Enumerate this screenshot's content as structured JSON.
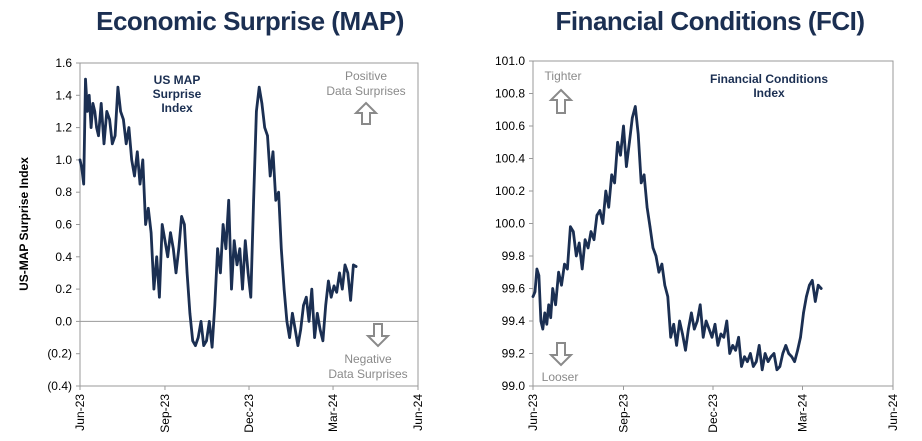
{
  "titles": {
    "left": "Economic Surprise (MAP)",
    "right": "Financial Conditions (FCI)"
  },
  "annotations": {
    "left_series_label": [
      "US MAP",
      "Surprise",
      "Index"
    ],
    "left_positive": [
      "Positive",
      "Data Surprises"
    ],
    "left_negative": [
      "Negative",
      "Data Surprises"
    ],
    "right_series_label": [
      "Financial Conditions",
      "Index"
    ],
    "right_tighter": "Tighter",
    "right_looser": "Looser"
  },
  "colors": {
    "line": "#1b2f52",
    "title": "#1b2f52",
    "arrow": "#8a8a8a",
    "axis": "#999999"
  },
  "icons": {
    "up": "up-arrow-icon",
    "down": "down-arrow-icon"
  },
  "chart_data": [
    {
      "type": "line",
      "title": "Economic Surprise (MAP)",
      "xlabel": "",
      "ylabel": "US-MAP Surprise Index",
      "ylim": [
        -0.4,
        1.6
      ],
      "yticks": [
        -0.4,
        -0.2,
        0.0,
        0.2,
        0.4,
        0.6,
        0.8,
        1.0,
        1.2,
        1.4,
        1.6
      ],
      "ytick_labels": [
        "(0.4)",
        "(0.2)",
        "0.0",
        "0.2",
        "0.4",
        "0.6",
        "0.8",
        "1.0",
        "1.2",
        "1.4",
        "1.6"
      ],
      "xlim": [
        "2023-06-01",
        "2024-06-01"
      ],
      "xticks": [
        "2023-06-01",
        "2023-09-01",
        "2023-12-01",
        "2024-03-01",
        "2024-06-01"
      ],
      "xtick_labels": [
        "Jun-23",
        "Sep-23",
        "Dec-23",
        "Mar-24",
        "Jun-24"
      ],
      "series": [
        {
          "x": [
            "2023-06-01",
            "2023-06-03",
            "2023-06-05",
            "2023-06-07",
            "2023-06-09",
            "2023-06-11",
            "2023-06-13",
            "2023-06-15",
            "2023-06-17",
            "2023-06-19",
            "2023-06-21",
            "2023-06-24",
            "2023-06-27",
            "2023-06-30",
            "2023-07-03",
            "2023-07-06",
            "2023-07-09",
            "2023-07-12",
            "2023-07-15",
            "2023-07-18",
            "2023-07-21",
            "2023-07-24",
            "2023-07-27",
            "2023-07-30",
            "2023-08-02",
            "2023-08-05",
            "2023-08-08",
            "2023-08-11",
            "2023-08-14",
            "2023-08-17",
            "2023-08-20",
            "2023-08-23",
            "2023-08-26",
            "2023-08-29",
            "2023-09-01",
            "2023-09-04",
            "2023-09-07",
            "2023-09-10",
            "2023-09-13",
            "2023-09-16",
            "2023-09-19",
            "2023-09-22",
            "2023-09-25",
            "2023-09-28",
            "2023-10-01",
            "2023-10-04",
            "2023-10-07",
            "2023-10-10",
            "2023-10-13",
            "2023-10-16",
            "2023-10-19",
            "2023-10-22",
            "2023-10-25",
            "2023-10-28",
            "2023-10-31",
            "2023-11-03",
            "2023-11-06",
            "2023-11-09",
            "2023-11-12",
            "2023-11-15",
            "2023-11-18",
            "2023-11-21",
            "2023-11-24",
            "2023-11-27",
            "2023-11-30",
            "2023-12-03",
            "2023-12-06",
            "2023-12-09",
            "2023-12-12",
            "2023-12-15",
            "2023-12-18",
            "2023-12-21",
            "2023-12-24",
            "2023-12-27",
            "2023-12-30",
            "2024-01-02",
            "2024-01-05",
            "2024-01-08",
            "2024-01-11",
            "2024-01-14",
            "2024-01-17",
            "2024-01-20",
            "2024-01-23",
            "2024-01-26",
            "2024-01-29",
            "2024-02-01",
            "2024-02-04",
            "2024-02-07",
            "2024-02-10",
            "2024-02-13",
            "2024-02-16",
            "2024-02-19",
            "2024-02-22",
            "2024-02-25",
            "2024-02-28",
            "2024-03-02",
            "2024-03-05",
            "2024-03-08",
            "2024-03-11",
            "2024-03-14",
            "2024-03-17",
            "2024-03-20",
            "2024-03-23",
            "2024-03-26"
          ],
          "y": [
            1.0,
            0.95,
            0.85,
            1.5,
            1.3,
            1.4,
            1.2,
            1.35,
            1.3,
            1.2,
            1.15,
            1.35,
            1.1,
            1.3,
            1.25,
            1.1,
            1.15,
            1.45,
            1.3,
            1.25,
            1.1,
            1.2,
            1.0,
            0.9,
            1.05,
            0.85,
            1.0,
            0.6,
            0.7,
            0.55,
            0.2,
            0.4,
            0.15,
            0.6,
            0.5,
            0.4,
            0.55,
            0.45,
            0.3,
            0.45,
            0.65,
            0.6,
            0.3,
            0.05,
            -0.12,
            -0.15,
            -0.1,
            0.0,
            -0.15,
            -0.12,
            0.0,
            -0.16,
            0.1,
            0.45,
            0.3,
            0.6,
            0.45,
            0.75,
            0.2,
            0.5,
            0.35,
            0.45,
            0.2,
            0.5,
            0.3,
            0.15,
            0.75,
            1.3,
            1.45,
            1.35,
            1.2,
            1.15,
            0.9,
            1.05,
            0.75,
            0.8,
            0.45,
            0.2,
            0.0,
            -0.1,
            0.05,
            -0.05,
            -0.15,
            -0.05,
            0.1,
            0.15,
            0.0,
            0.2,
            -0.1,
            0.05,
            -0.05,
            -0.12,
            0.1,
            0.25,
            0.15,
            0.22,
            0.18,
            0.3,
            0.2,
            0.35,
            0.3,
            0.13,
            0.35,
            0.34
          ]
        }
      ]
    },
    {
      "type": "line",
      "title": "Financial Conditions (FCI)",
      "xlabel": "",
      "ylabel": "",
      "ylim": [
        99.0,
        101.0
      ],
      "yticks": [
        99.0,
        99.2,
        99.4,
        99.6,
        99.8,
        100.0,
        100.2,
        100.4,
        100.6,
        100.8,
        101.0
      ],
      "ytick_labels": [
        "99.0",
        "99.2",
        "99.4",
        "99.6",
        "99.8",
        "100.0",
        "100.2",
        "100.4",
        "100.6",
        "100.8",
        "101.0"
      ],
      "xlim": [
        "2023-06-01",
        "2024-06-01"
      ],
      "xticks": [
        "2023-06-01",
        "2023-09-01",
        "2023-12-01",
        "2024-03-01",
        "2024-06-01"
      ],
      "xtick_labels": [
        "Jun-23",
        "Sep-23",
        "Dec-23",
        "Mar-24",
        "Jun-24"
      ],
      "series": [
        {
          "x": [
            "2023-06-01",
            "2023-06-03",
            "2023-06-05",
            "2023-06-07",
            "2023-06-09",
            "2023-06-11",
            "2023-06-13",
            "2023-06-15",
            "2023-06-17",
            "2023-06-19",
            "2023-06-21",
            "2023-06-24",
            "2023-06-27",
            "2023-06-30",
            "2023-07-03",
            "2023-07-06",
            "2023-07-09",
            "2023-07-12",
            "2023-07-15",
            "2023-07-18",
            "2023-07-21",
            "2023-07-24",
            "2023-07-27",
            "2023-07-30",
            "2023-08-02",
            "2023-08-05",
            "2023-08-08",
            "2023-08-11",
            "2023-08-14",
            "2023-08-17",
            "2023-08-20",
            "2023-08-23",
            "2023-08-26",
            "2023-08-29",
            "2023-09-01",
            "2023-09-04",
            "2023-09-07",
            "2023-09-10",
            "2023-09-13",
            "2023-09-16",
            "2023-09-19",
            "2023-09-22",
            "2023-09-25",
            "2023-09-28",
            "2023-10-01",
            "2023-10-04",
            "2023-10-07",
            "2023-10-10",
            "2023-10-13",
            "2023-10-16",
            "2023-10-19",
            "2023-10-22",
            "2023-10-25",
            "2023-10-28",
            "2023-10-31",
            "2023-11-03",
            "2023-11-06",
            "2023-11-09",
            "2023-11-12",
            "2023-11-15",
            "2023-11-18",
            "2023-11-21",
            "2023-11-24",
            "2023-11-27",
            "2023-11-30",
            "2023-12-03",
            "2023-12-06",
            "2023-12-09",
            "2023-12-12",
            "2023-12-15",
            "2023-12-18",
            "2023-12-21",
            "2023-12-24",
            "2023-12-27",
            "2023-12-30",
            "2024-01-02",
            "2024-01-05",
            "2024-01-08",
            "2024-01-11",
            "2024-01-14",
            "2024-01-17",
            "2024-01-20",
            "2024-01-23",
            "2024-01-26",
            "2024-01-29",
            "2024-02-01",
            "2024-02-04",
            "2024-02-07",
            "2024-02-10",
            "2024-02-13",
            "2024-02-16",
            "2024-02-19",
            "2024-02-22",
            "2024-02-25",
            "2024-02-28",
            "2024-03-02",
            "2024-03-05",
            "2024-03-08",
            "2024-03-11",
            "2024-03-14",
            "2024-03-17",
            "2024-03-20"
          ],
          "y": [
            99.55,
            99.58,
            99.72,
            99.68,
            99.4,
            99.35,
            99.45,
            99.38,
            99.5,
            99.42,
            99.6,
            99.5,
            99.7,
            99.62,
            99.75,
            99.72,
            99.98,
            99.95,
            99.8,
            99.88,
            99.72,
            99.9,
            99.85,
            99.95,
            99.9,
            100.05,
            100.08,
            100.0,
            100.2,
            100.1,
            100.3,
            100.25,
            100.5,
            100.42,
            100.6,
            100.35,
            100.5,
            100.65,
            100.72,
            100.55,
            100.25,
            100.3,
            100.1,
            99.98,
            99.85,
            99.8,
            99.7,
            99.75,
            99.62,
            99.55,
            99.3,
            99.38,
            99.25,
            99.4,
            99.32,
            99.22,
            99.35,
            99.45,
            99.35,
            99.4,
            99.5,
            99.3,
            99.4,
            99.35,
            99.3,
            99.38,
            99.25,
            99.32,
            99.3,
            99.4,
            99.2,
            99.25,
            99.22,
            99.3,
            99.12,
            99.18,
            99.15,
            99.2,
            99.12,
            99.15,
            99.25,
            99.1,
            99.2,
            99.15,
            99.18,
            99.2,
            99.1,
            99.12,
            99.2,
            99.25,
            99.2,
            99.18,
            99.15,
            99.22,
            99.3,
            99.45,
            99.55,
            99.62,
            99.65,
            99.52,
            99.62,
            99.6
          ]
        }
      ]
    }
  ]
}
